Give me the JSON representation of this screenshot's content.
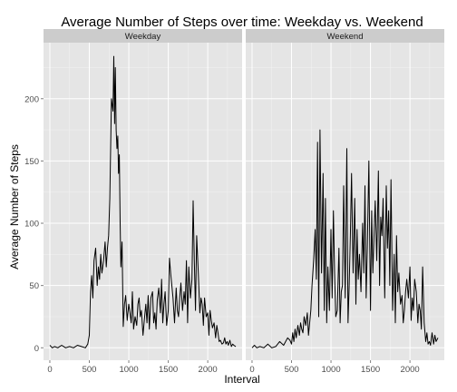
{
  "chart_data": {
    "type": "line",
    "title": "Average Number of Steps over time: Weekday vs. Weekend",
    "xlabel": "Interval",
    "ylabel": "Average Number of Steps",
    "xlim": [
      -80,
      2435
    ],
    "ylim": [
      -10,
      245
    ],
    "x_ticks": [
      0,
      500,
      1000,
      1500,
      2000
    ],
    "y_ticks": [
      0,
      50,
      100,
      150,
      200
    ],
    "x_tick_labels": [
      "0",
      "500",
      "1000",
      "1500",
      "2000"
    ],
    "y_tick_labels": [
      "0",
      "50",
      "100",
      "150",
      "200"
    ],
    "grid": true,
    "line_color": "#000000",
    "panel_background": "#e5e5e5",
    "strip_background": "#cccccc",
    "panels": [
      {
        "label": "Weekday",
        "x": [
          0,
          30,
          60,
          100,
          150,
          200,
          250,
          300,
          350,
          400,
          450,
          480,
          500,
          515,
          530,
          545,
          560,
          580,
          600,
          615,
          630,
          645,
          660,
          680,
          700,
          715,
          730,
          745,
          760,
          780,
          800,
          810,
          820,
          830,
          840,
          850,
          860,
          870,
          880,
          890,
          900,
          915,
          930,
          945,
          960,
          980,
          1000,
          1015,
          1030,
          1045,
          1060,
          1080,
          1100,
          1115,
          1130,
          1145,
          1160,
          1180,
          1200,
          1215,
          1230,
          1245,
          1260,
          1280,
          1300,
          1315,
          1330,
          1345,
          1360,
          1380,
          1400,
          1415,
          1430,
          1445,
          1460,
          1480,
          1500,
          1515,
          1530,
          1545,
          1560,
          1580,
          1600,
          1615,
          1630,
          1645,
          1660,
          1680,
          1700,
          1715,
          1730,
          1745,
          1760,
          1780,
          1800,
          1815,
          1830,
          1845,
          1860,
          1880,
          1900,
          1915,
          1930,
          1945,
          1960,
          1980,
          2000,
          2015,
          2030,
          2045,
          2060,
          2080,
          2100,
          2115,
          2130,
          2145,
          2160,
          2180,
          2200,
          2215,
          2230,
          2245,
          2260,
          2280,
          2300,
          2315,
          2330,
          2355
        ],
        "y": [
          2,
          0,
          1,
          0,
          2,
          0,
          1,
          0,
          2,
          1,
          0,
          3,
          10,
          45,
          58,
          40,
          70,
          80,
          50,
          65,
          55,
          75,
          60,
          70,
          85,
          65,
          80,
          90,
          120,
          200,
          190,
          234,
          180,
          225,
          175,
          160,
          170,
          140,
          155,
          100,
          65,
          85,
          17,
          35,
          42,
          22,
          35,
          28,
          20,
          45,
          15,
          25,
          18,
          35,
          40,
          25,
          30,
          10,
          25,
          35,
          20,
          42,
          15,
          40,
          45,
          20,
          28,
          15,
          38,
          48,
          28,
          55,
          20,
          35,
          45,
          18,
          30,
          72,
          60,
          50,
          40,
          20,
          48,
          30,
          25,
          40,
          52,
          30,
          45,
          35,
          70,
          20,
          65,
          40,
          55,
          118,
          70,
          30,
          90,
          60,
          28,
          40,
          35,
          18,
          40,
          25,
          28,
          10,
          30,
          22,
          16,
          20,
          8,
          18,
          12,
          5,
          6,
          3,
          4,
          8,
          3,
          5,
          2,
          6,
          1,
          3,
          2,
          1
        ]
      },
      {
        "label": "Weekend",
        "x": [
          0,
          30,
          60,
          100,
          150,
          200,
          250,
          300,
          350,
          400,
          450,
          480,
          500,
          515,
          530,
          545,
          560,
          580,
          600,
          615,
          630,
          645,
          660,
          680,
          700,
          715,
          730,
          745,
          760,
          780,
          800,
          815,
          830,
          845,
          860,
          880,
          900,
          915,
          930,
          945,
          960,
          980,
          1000,
          1015,
          1030,
          1045,
          1060,
          1080,
          1100,
          1115,
          1130,
          1145,
          1160,
          1180,
          1200,
          1215,
          1230,
          1245,
          1260,
          1280,
          1300,
          1315,
          1330,
          1345,
          1360,
          1380,
          1400,
          1415,
          1430,
          1445,
          1460,
          1480,
          1500,
          1515,
          1530,
          1545,
          1560,
          1580,
          1600,
          1615,
          1630,
          1645,
          1660,
          1680,
          1700,
          1715,
          1730,
          1745,
          1760,
          1780,
          1800,
          1815,
          1830,
          1845,
          1860,
          1880,
          1900,
          1915,
          1930,
          1945,
          1960,
          1980,
          2000,
          2015,
          2030,
          2045,
          2060,
          2080,
          2100,
          2115,
          2130,
          2145,
          2160,
          2180,
          2200,
          2215,
          2230,
          2245,
          2260,
          2280,
          2300,
          2315,
          2330,
          2355
        ],
        "y": [
          0,
          2,
          0,
          1,
          0,
          3,
          0,
          1,
          5,
          2,
          8,
          6,
          3,
          12,
          5,
          15,
          8,
          18,
          10,
          20,
          15,
          12,
          25,
          18,
          28,
          10,
          20,
          30,
          50,
          70,
          95,
          55,
          165,
          25,
          175,
          60,
          140,
          30,
          120,
          20,
          65,
          30,
          95,
          40,
          110,
          60,
          25,
          30,
          80,
          20,
          45,
          50,
          130,
          40,
          160,
          20,
          50,
          90,
          140,
          60,
          120,
          35,
          95,
          55,
          75,
          45,
          100,
          60,
          130,
          40,
          80,
          150,
          30,
          110,
          60,
          90,
          118,
          70,
          142,
          50,
          105,
          90,
          120,
          40,
          130,
          80,
          110,
          50,
          135,
          30,
          75,
          20,
          90,
          45,
          60,
          35,
          42,
          20,
          30,
          45,
          55,
          40,
          65,
          22,
          40,
          30,
          55,
          45,
          20,
          35,
          30,
          15,
          65,
          20,
          5,
          12,
          3,
          5,
          2,
          12,
          3,
          10,
          5,
          8
        ]
      }
    ]
  }
}
